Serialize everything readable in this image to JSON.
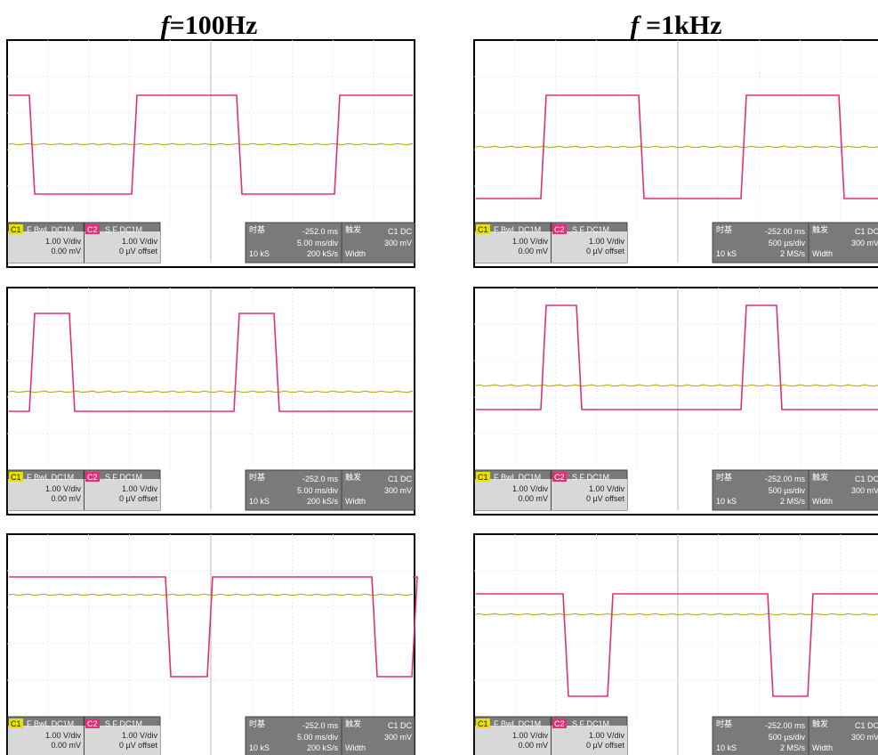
{
  "columns": [
    {
      "title_var": "f",
      "title_rest": "=100Hz",
      "status": {
        "ch1_label": "C1",
        "ch1_mode": "F BwL DC1M",
        "ch1_scale": "1.00 V/div",
        "ch1_offset": "0.00 mV",
        "ch2_label": "C2",
        "ch2_mode": "S F DC1M",
        "ch2_scale": "1.00 V/div",
        "ch2_offset": "0 µV offset",
        "tb_label": "时基",
        "tb_delay": "-252.0 ms",
        "tb_div": "5.00 ms/div",
        "tb_samples": "10 kS",
        "tb_rate": "200 kS/s",
        "trig_label": "触发",
        "trig_src": "C1 DC",
        "trig_level": "300 mV",
        "trig_type": "Width"
      }
    },
    {
      "title_var": "f",
      "title_rest": " =1kHz",
      "status": {
        "ch1_label": "C1",
        "ch1_mode": "F BwL DC1M",
        "ch1_scale": "1.00 V/div",
        "ch1_offset": "0.00 mV",
        "ch2_label": "C2",
        "ch2_mode": "S F DC1M",
        "ch2_scale": "1.00 V/div",
        "ch2_offset": "0 µV offset",
        "tb_label": "时基",
        "tb_delay": "-252.00 ms",
        "tb_div": "500 µs/div",
        "tb_samples": "10 kS",
        "tb_rate": "2 MS/s",
        "trig_label": "触发",
        "trig_src": "C1 DC",
        "trig_level": "300 mV",
        "trig_type": "Width"
      }
    }
  ]
}
